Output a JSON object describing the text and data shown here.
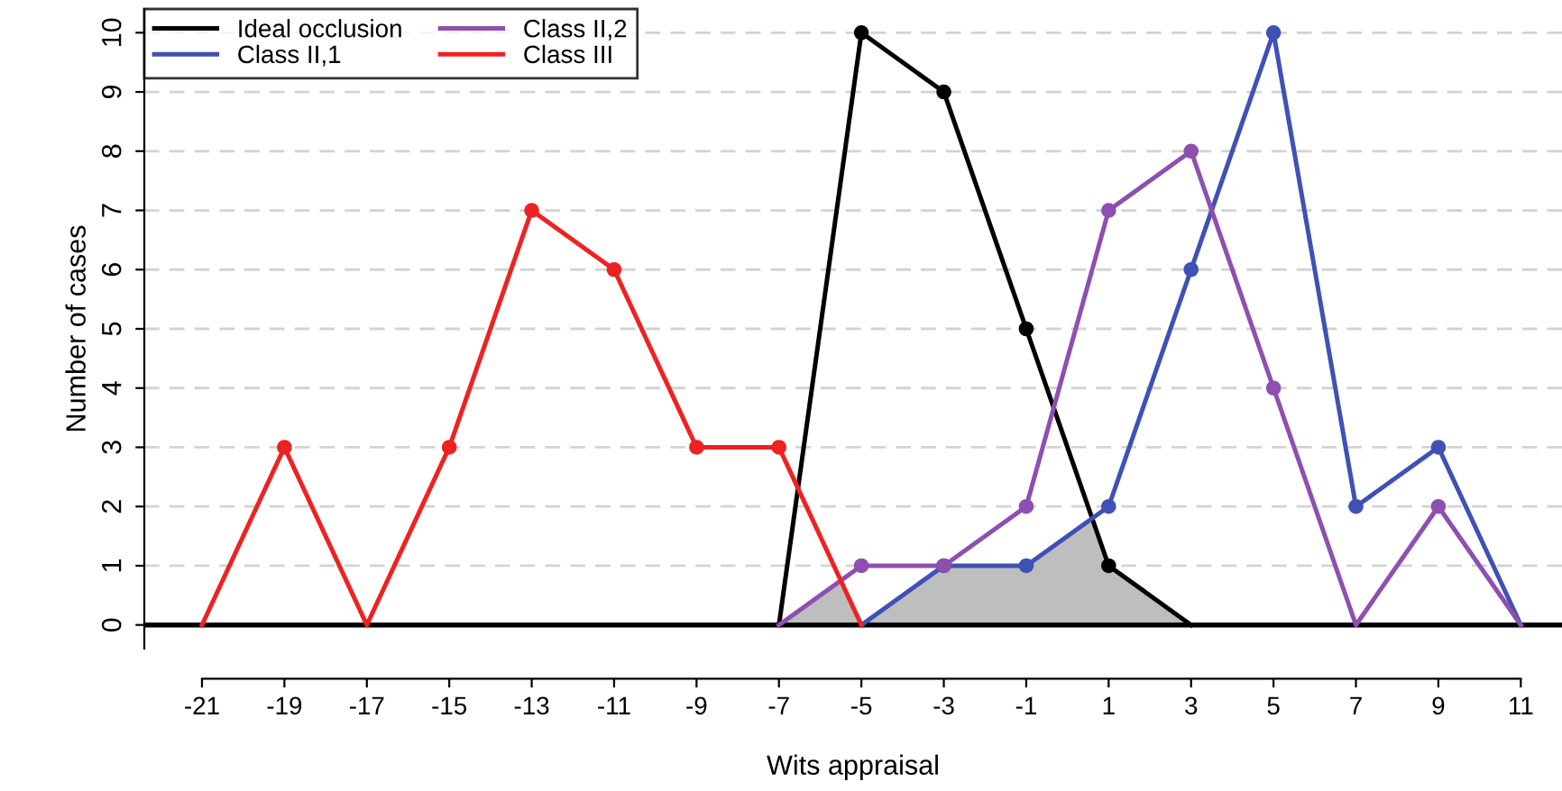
{
  "chart_data": {
    "type": "line",
    "xlabel": "Wits appraisal",
    "ylabel": "Number of cases",
    "xlim": [
      -22.4,
      12
    ],
    "ylim": [
      -0.4,
      10.4
    ],
    "xticks": [
      -21,
      -19,
      -17,
      -15,
      -13,
      -11,
      -9,
      -7,
      -5,
      -3,
      -1,
      1,
      3,
      5,
      7,
      9,
      11
    ],
    "yticks": [
      0,
      1,
      2,
      3,
      4,
      5,
      6,
      7,
      8,
      9,
      10
    ],
    "grid": "y",
    "legend": "top left",
    "marker": "circle",
    "line_style": "solid",
    "ref_lines": [
      {
        "axis": "y",
        "value": 0,
        "color": "#000000"
      }
    ],
    "series": [
      {
        "type": "area",
        "marker": "none",
        "color": "#bebebe",
        "x": [
          -7,
          -5.5,
          -5,
          -3,
          -1,
          0.6,
          1,
          3
        ],
        "values": [
          0,
          0.75,
          0,
          1,
          1,
          1.8,
          1,
          0
        ]
      },
      {
        "name": "Ideal occlusion",
        "color": "#000000",
        "x": [
          -7,
          -5,
          -3,
          -1,
          1,
          3
        ],
        "values": [
          0,
          10,
          9,
          5,
          1,
          0
        ]
      },
      {
        "name": "Class II,1",
        "color": "#3f51b5",
        "x": [
          -5,
          -3,
          -1,
          1,
          3,
          5,
          7,
          9,
          11
        ],
        "values": [
          0,
          1,
          1,
          2,
          6,
          10,
          2,
          3,
          0
        ]
      },
      {
        "name": "Class II,2",
        "color": "#8e4fb0",
        "x": [
          -7,
          -5,
          -3,
          -1,
          1,
          3,
          5,
          7,
          9,
          11
        ],
        "values": [
          0,
          1,
          1,
          2,
          7,
          8,
          4,
          0,
          2,
          0
        ]
      },
      {
        "name": "Class III",
        "color": "#ee2222",
        "x": [
          -21,
          -19,
          -17,
          -15,
          -13,
          -11,
          -9,
          -7,
          -5
        ],
        "values": [
          0,
          3,
          0,
          3,
          7,
          6,
          3,
          3,
          0
        ]
      }
    ]
  }
}
